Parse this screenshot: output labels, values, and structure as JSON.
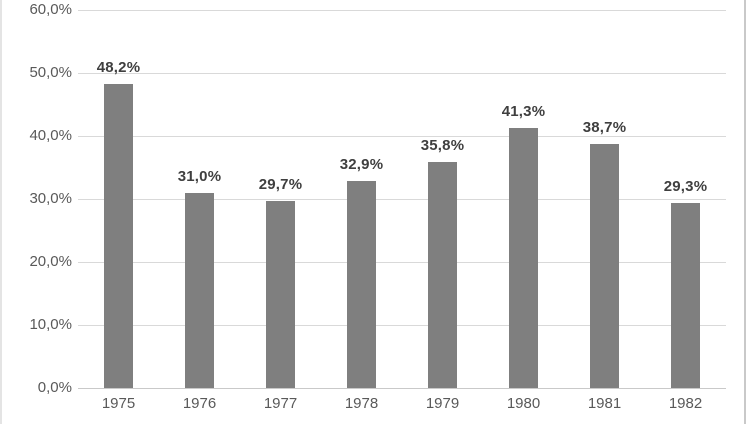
{
  "chart_data": {
    "type": "bar",
    "title": "",
    "xlabel": "",
    "ylabel": "",
    "categories": [
      "1975",
      "1976",
      "1977",
      "1978",
      "1979",
      "1980",
      "1981",
      "1982"
    ],
    "values": [
      48.2,
      31.0,
      29.7,
      32.9,
      35.8,
      41.3,
      38.7,
      29.3
    ],
    "data_labels": [
      "48,2%",
      "31,0%",
      "29,7%",
      "32,9%",
      "35,8%",
      "41,3%",
      "38,7%",
      "29,3%"
    ],
    "y_ticks": [
      0,
      10,
      20,
      30,
      40,
      50,
      60
    ],
    "y_tick_labels": [
      "0,0%",
      "10,0%",
      "20,0%",
      "30,0%",
      "40,0%",
      "50,0%",
      "60,0%"
    ],
    "ylim": [
      0,
      60
    ],
    "grid": true,
    "legend": false,
    "number_format": "european-decimal-comma",
    "colors": {
      "bar": "#7f7f7f",
      "gridline": "#d9d9d9",
      "axis_line": "#c9c9c9",
      "tick_label": "#595959",
      "data_label": "#3f3f3f"
    }
  }
}
